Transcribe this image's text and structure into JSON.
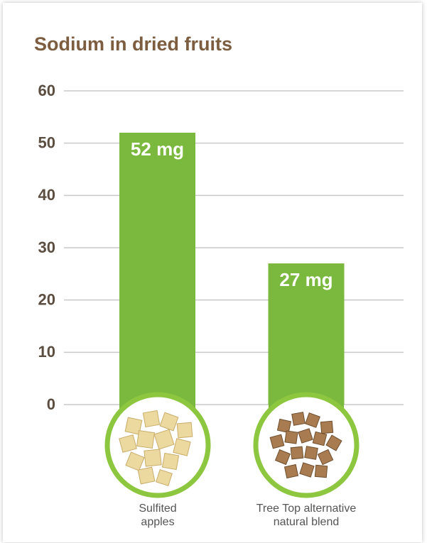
{
  "chart_data": {
    "type": "bar",
    "title": "Sodium in dried fruits",
    "categories": [
      "Sulfited apples",
      "Tree Top alternative natural blend"
    ],
    "values": [
      52,
      27
    ],
    "value_labels": [
      "52 mg",
      "27 mg"
    ],
    "color": "#7bb83e",
    "ylim": [
      0,
      60
    ],
    "yticks": [
      0,
      10,
      20,
      30,
      40,
      50,
      60
    ],
    "grid": true
  }
}
